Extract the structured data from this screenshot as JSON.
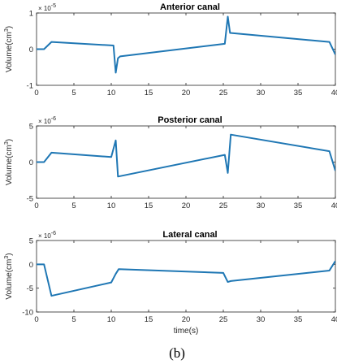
{
  "caption": "(b)",
  "colors": {
    "line": "#1f77b4",
    "axes": "#262626",
    "grid_tick": "#262626"
  },
  "chart_data": [
    {
      "type": "line",
      "title": "Anterior canal",
      "xlabel": "",
      "ylabel_text": "Volume(cm",
      "ylabel_sup": "3",
      "ylabel_close": ")",
      "exponent_base": "× 10",
      "exponent_power": "-5",
      "xlim": [
        0,
        40
      ],
      "ylim": [
        -1,
        1
      ],
      "xticks": [
        "0",
        "5",
        "10",
        "15",
        "20",
        "25",
        "30",
        "35",
        "40"
      ],
      "yticks": [
        "-1",
        "0",
        "1"
      ],
      "series": [
        {
          "x": [
            0,
            1,
            2,
            10.3,
            10.6,
            10.9,
            11.2,
            25.2,
            25.6,
            25.9,
            39.2,
            40
          ],
          "y": [
            0.0,
            0.0,
            0.2,
            0.1,
            -0.65,
            -0.25,
            -0.2,
            0.15,
            0.9,
            0.45,
            0.2,
            -0.15
          ]
        }
      ]
    },
    {
      "type": "line",
      "title": "Posterior canal",
      "xlabel": "",
      "ylabel_text": "Volume(cm",
      "ylabel_sup": "3",
      "ylabel_close": ")",
      "exponent_base": "× 10",
      "exponent_power": "-6",
      "xlim": [
        0,
        40
      ],
      "ylim": [
        -5,
        5
      ],
      "xticks": [
        "0",
        "5",
        "10",
        "15",
        "20",
        "25",
        "30",
        "35",
        "40"
      ],
      "yticks": [
        "-5",
        "0",
        "5"
      ],
      "series": [
        {
          "x": [
            0,
            1,
            2,
            10.0,
            10.6,
            10.9,
            25.2,
            25.6,
            26.0,
            39.2,
            40
          ],
          "y": [
            0.0,
            0.0,
            1.3,
            0.7,
            3.0,
            -2.0,
            1.0,
            -1.5,
            3.8,
            1.5,
            -1.2
          ]
        }
      ]
    },
    {
      "type": "line",
      "title": "Lateral canal",
      "xlabel": "time(s)",
      "ylabel_text": "Volume(cm",
      "ylabel_sup": "3",
      "ylabel_close": ")",
      "exponent_base": "× 10",
      "exponent_power": "-6",
      "xlim": [
        0,
        40
      ],
      "ylim": [
        -10,
        5
      ],
      "xticks": [
        "0",
        "5",
        "10",
        "15",
        "20",
        "25",
        "30",
        "35",
        "40"
      ],
      "yticks": [
        "-10",
        "-5",
        "0",
        "5"
      ],
      "series": [
        {
          "x": [
            0,
            1,
            2,
            10.0,
            10.6,
            11.0,
            25.0,
            25.6,
            26.0,
            39.2,
            40
          ],
          "y": [
            0.0,
            0.0,
            -6.6,
            -3.8,
            -2.0,
            -1.0,
            -1.8,
            -3.7,
            -3.5,
            -1.3,
            0.7
          ]
        }
      ]
    }
  ]
}
